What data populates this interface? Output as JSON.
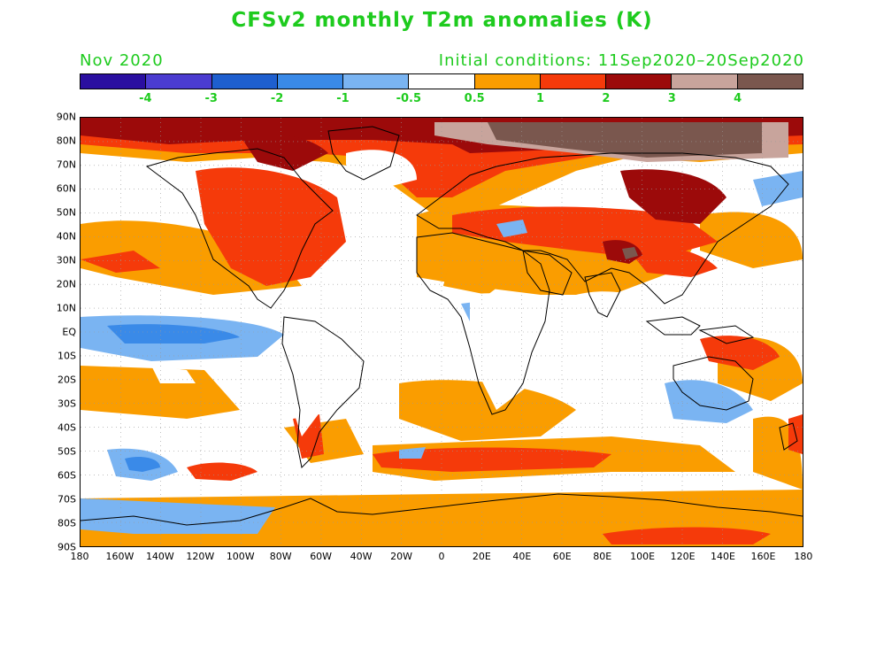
{
  "title": "CFSv2 monthly T2m anomalies (K)",
  "month": "Nov 2020",
  "initial_conditions": "Initial conditions: 11Sep2020–20Sep2020",
  "colorbar": {
    "colors": [
      "#2a0fa0",
      "#4b3cd0",
      "#1e5fcf",
      "#3a8ae8",
      "#7ab4f2",
      "#ffffff",
      "#fa9d00",
      "#f53a0a",
      "#9c0a0a",
      "#c8a49c",
      "#7a574e"
    ],
    "labels": [
      "-4",
      "-3",
      "-2",
      "-1",
      "-0.5",
      "0.5",
      "1",
      "2",
      "3",
      "4"
    ]
  },
  "axes": {
    "lat_labels": [
      "90N",
      "80N",
      "70N",
      "60N",
      "50N",
      "40N",
      "30N",
      "20N",
      "10N",
      "EQ",
      "10S",
      "20S",
      "30S",
      "40S",
      "50S",
      "60S",
      "70S",
      "80S",
      "90S"
    ],
    "lon_labels": [
      "180",
      "160W",
      "140W",
      "120W",
      "100W",
      "80W",
      "60W",
      "40W",
      "20W",
      "0",
      "20E",
      "40E",
      "60E",
      "80E",
      "100E",
      "120E",
      "140E",
      "160E",
      "180"
    ]
  }
}
